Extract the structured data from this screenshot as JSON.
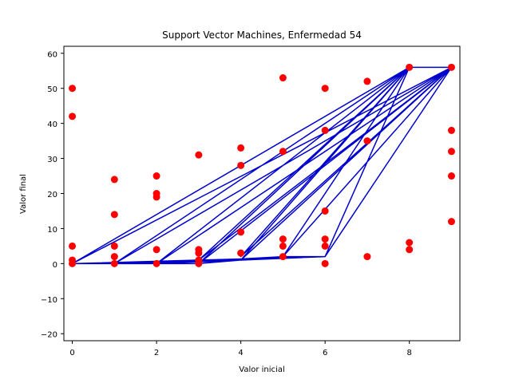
{
  "chart_data": {
    "type": "scatter",
    "title": "Support Vector Machines, Enfermedad 54",
    "xlabel": "Valor inicial",
    "ylabel": "Valor final",
    "xlim": [
      -0.2,
      9.2
    ],
    "ylim": [
      -22,
      62
    ],
    "xticks": [
      0,
      2,
      4,
      6,
      8
    ],
    "yticks": [
      -20,
      -10,
      0,
      10,
      20,
      30,
      40,
      50,
      60
    ],
    "grid": false,
    "colors": {
      "points": "#ff0000",
      "lines": "#0000cc"
    },
    "points": [
      [
        0,
        50
      ],
      [
        0,
        42
      ],
      [
        0,
        5
      ],
      [
        0,
        1
      ],
      [
        0,
        0
      ],
      [
        1,
        24
      ],
      [
        1,
        14
      ],
      [
        1,
        5
      ],
      [
        1,
        2
      ],
      [
        1,
        0
      ],
      [
        2,
        25
      ],
      [
        2,
        20
      ],
      [
        2,
        19
      ],
      [
        2,
        4
      ],
      [
        2,
        0
      ],
      [
        3,
        31
      ],
      [
        3,
        4
      ],
      [
        3,
        3
      ],
      [
        3,
        1
      ],
      [
        3,
        0
      ],
      [
        4,
        33
      ],
      [
        4,
        28
      ],
      [
        4,
        9
      ],
      [
        4,
        3
      ],
      [
        5,
        53
      ],
      [
        5,
        32
      ],
      [
        5,
        7
      ],
      [
        5,
        5
      ],
      [
        5,
        2
      ],
      [
        6,
        50
      ],
      [
        6,
        38
      ],
      [
        6,
        15
      ],
      [
        6,
        7
      ],
      [
        6,
        5
      ],
      [
        6,
        0
      ],
      [
        7,
        52
      ],
      [
        7,
        35
      ],
      [
        7,
        2
      ],
      [
        8,
        56
      ],
      [
        8,
        6
      ],
      [
        8,
        4
      ],
      [
        9,
        56
      ],
      [
        9,
        38
      ],
      [
        9,
        32
      ],
      [
        9,
        25
      ],
      [
        9,
        12
      ]
    ],
    "line_path": [
      [
        0,
        0
      ],
      [
        8,
        56
      ],
      [
        9,
        56
      ],
      [
        0,
        0
      ],
      [
        9,
        56
      ],
      [
        1,
        0
      ],
      [
        8,
        56
      ],
      [
        2,
        0
      ],
      [
        9,
        56
      ],
      [
        3,
        0
      ],
      [
        8,
        56
      ],
      [
        4,
        1
      ],
      [
        9,
        56
      ],
      [
        5,
        2
      ],
      [
        8,
        56
      ],
      [
        6,
        2
      ],
      [
        9,
        56
      ],
      [
        1,
        0
      ],
      [
        8,
        56
      ],
      [
        3,
        1
      ],
      [
        9,
        56
      ],
      [
        2,
        0
      ],
      [
        8,
        56
      ],
      [
        4,
        2
      ],
      [
        9,
        56
      ],
      [
        6,
        2
      ],
      [
        8,
        56
      ],
      [
        5,
        2
      ],
      [
        9,
        56
      ],
      [
        6,
        2
      ],
      [
        0,
        0
      ],
      [
        3,
        0
      ],
      [
        5,
        2
      ],
      [
        6,
        2
      ],
      [
        1,
        0
      ],
      [
        4,
        1
      ],
      [
        6,
        2
      ],
      [
        2,
        0
      ],
      [
        5,
        2
      ]
    ]
  }
}
